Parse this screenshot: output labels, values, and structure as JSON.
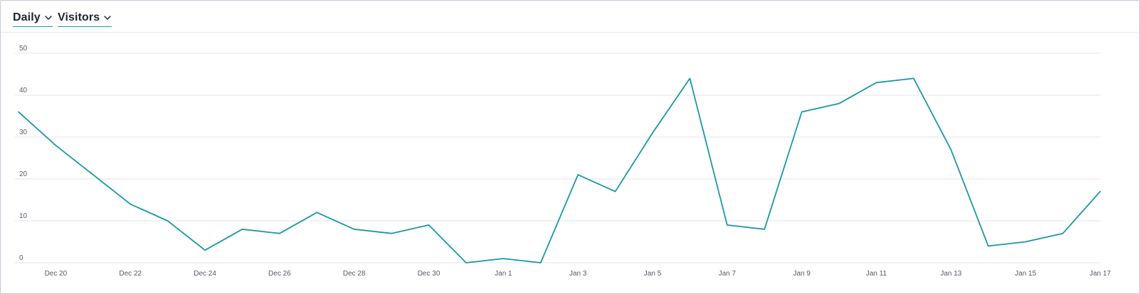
{
  "header": {
    "period_label": "Daily",
    "metric_label": "Visitors"
  },
  "colors": {
    "line": "#1a97a8",
    "grid": "#e4e4e8",
    "accent_underline": "#1a9bb0"
  },
  "chart_data": {
    "type": "line",
    "title": "",
    "xlabel": "",
    "ylabel": "",
    "ylim": [
      0,
      50
    ],
    "yticks": [
      0,
      10,
      20,
      30,
      40,
      50
    ],
    "grid": true,
    "x": [
      "Dec 19",
      "Dec 20",
      "Dec 21",
      "Dec 22",
      "Dec 23",
      "Dec 24",
      "Dec 25",
      "Dec 26",
      "Dec 27",
      "Dec 28",
      "Dec 29",
      "Dec 30",
      "Dec 31",
      "Jan 1",
      "Jan 2",
      "Jan 3",
      "Jan 4",
      "Jan 5",
      "Jan 6",
      "Jan 7",
      "Jan 8",
      "Jan 9",
      "Jan 10",
      "Jan 11",
      "Jan 12",
      "Jan 13",
      "Jan 14",
      "Jan 15",
      "Jan 16",
      "Jan 17"
    ],
    "xtick_labels": [
      "Dec 20",
      "Dec 22",
      "Dec 24",
      "Dec 26",
      "Dec 28",
      "Dec 30",
      "Jan 1",
      "Jan 3",
      "Jan 5",
      "Jan 7",
      "Jan 9",
      "Jan 11",
      "Jan 13",
      "Jan 15",
      "Jan 17"
    ],
    "series": [
      {
        "values": [
          36,
          28,
          21,
          14,
          10,
          3,
          8,
          7,
          12,
          8,
          7,
          9,
          0,
          1,
          0,
          21,
          17,
          31,
          44,
          9,
          8,
          36,
          38,
          43,
          44,
          27,
          4,
          5,
          7,
          17
        ]
      }
    ]
  }
}
